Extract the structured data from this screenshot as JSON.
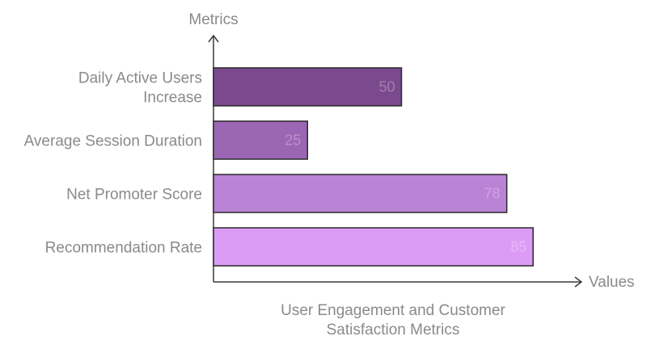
{
  "chart_data": {
    "type": "bar",
    "orientation": "horizontal",
    "categories": [
      [
        "Daily Active Users",
        "Increase"
      ],
      [
        "Average Session Duration"
      ],
      [
        "Net Promoter Score"
      ],
      [
        "Recommendation Rate"
      ]
    ],
    "values": [
      50,
      25,
      78,
      85
    ],
    "colors": [
      "#7b4a8e",
      "#9b67b4",
      "#bb83d6",
      "#dc9cf6"
    ],
    "y_axis_label": "Metrics",
    "x_axis_label": "Values",
    "caption": [
      "User Engagement and Customer",
      "Satisfaction Metrics"
    ],
    "xlim": [
      0,
      100
    ],
    "grid": false,
    "legend": false
  }
}
